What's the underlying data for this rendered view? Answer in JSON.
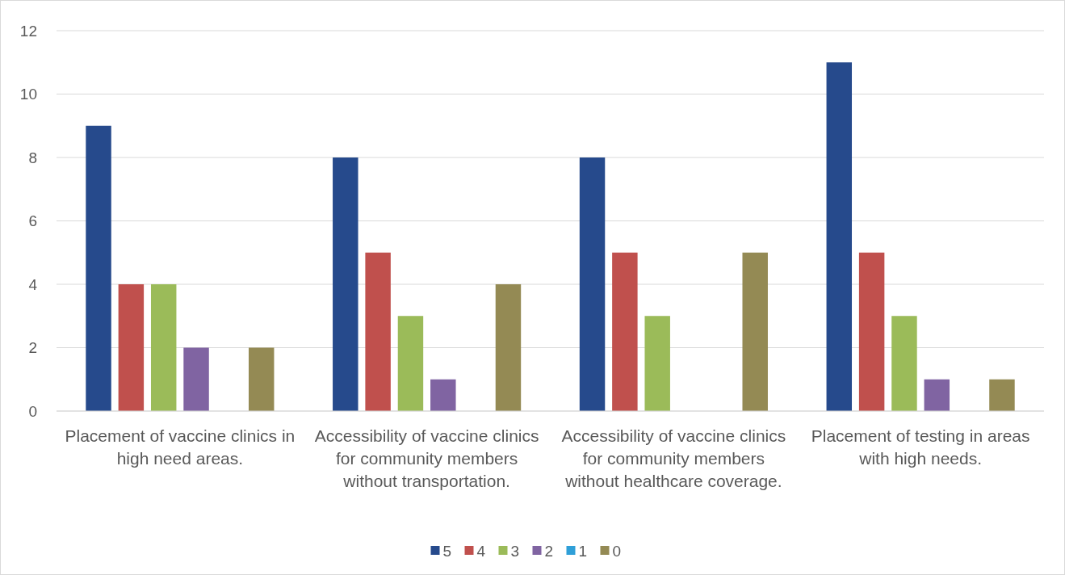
{
  "chart_data": {
    "type": "bar",
    "categories": [
      "Placement of vaccine clinics in high need areas.",
      "Accessibility of vaccine clinics for community members without transportation.",
      "Accessibility of vaccine clinics for community members without healthcare coverage.",
      "Placement of testing in areas with high needs."
    ],
    "series": [
      {
        "name": "5",
        "color": "#264a8c",
        "values": [
          9,
          8,
          8,
          11
        ]
      },
      {
        "name": "4",
        "color": "#c0504d",
        "values": [
          4,
          5,
          5,
          5
        ]
      },
      {
        "name": "3",
        "color": "#9bbb59",
        "values": [
          4,
          3,
          3,
          3
        ]
      },
      {
        "name": "2",
        "color": "#8064a2",
        "values": [
          2,
          1,
          0,
          1
        ]
      },
      {
        "name": "1",
        "color": "#2f9fd8",
        "values": [
          0,
          0,
          0,
          0
        ]
      },
      {
        "name": "0",
        "color": "#948a54",
        "values": [
          2,
          4,
          5,
          1
        ]
      }
    ],
    "ylim": [
      0,
      12
    ],
    "yticks": [
      0,
      2,
      4,
      6,
      8,
      10,
      12
    ],
    "grid": "y",
    "legend": "bottom"
  }
}
